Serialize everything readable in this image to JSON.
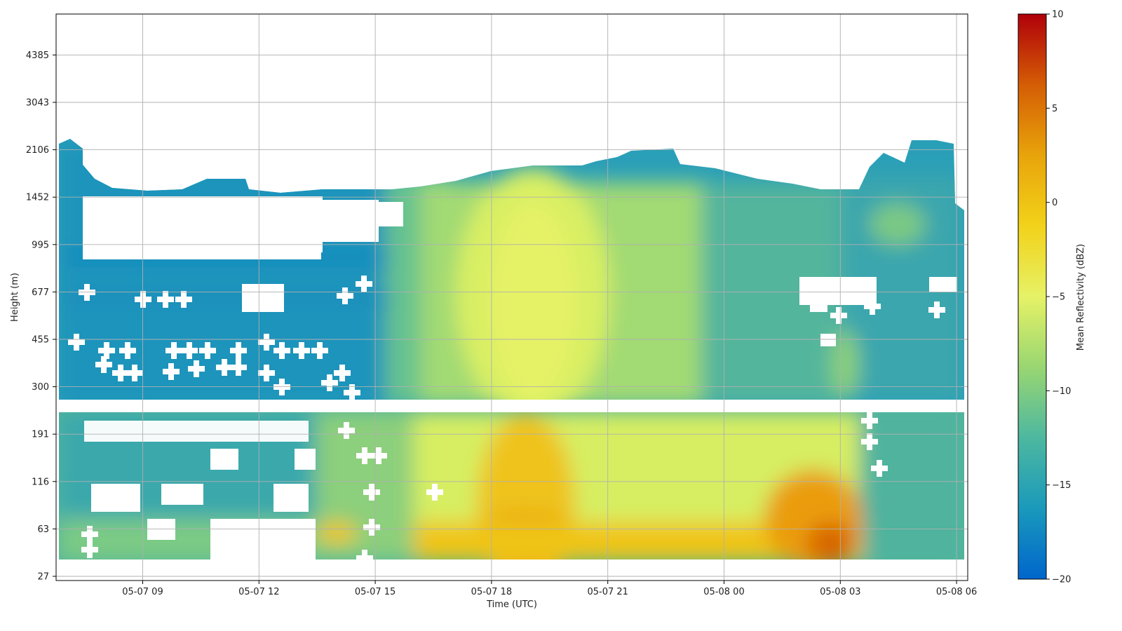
{
  "chart_data": {
    "type": "heatmap",
    "title": "",
    "xlabel": "Time (UTC)",
    "ylabel": "Height (m)",
    "x_ticks": [
      "05-07 09",
      "05-07 12",
      "05-07 15",
      "05-07 18",
      "05-07 21",
      "05-08 00",
      "05-08 03",
      "05-08 06"
    ],
    "x_range": [
      "05-07 06:45",
      "05-08 06:15"
    ],
    "y_ticks": [
      27,
      63,
      116,
      191,
      300,
      455,
      677,
      995,
      1452,
      2106,
      3043,
      4385
    ],
    "y_scale": "nonlinear (roughly logarithmic)",
    "y_range": [
      20,
      6000
    ],
    "grid": true,
    "colorbar": {
      "label": "Mean Reflectivity (dBZ)",
      "ticks": [
        -20,
        -15,
        -10,
        -5,
        0,
        5,
        10
      ],
      "range": [
        -20,
        10
      ],
      "colormap": [
        "#0066cc",
        "#1a99bb",
        "#4db8a0",
        "#99d672",
        "#e6f266",
        "#f2d21a",
        "#e8a40a",
        "#d45d05",
        "#b0000a"
      ]
    },
    "approx_features": [
      {
        "region": "morning 05-07 07-15 UTC, 300-1600 m",
        "reflectivity_dbz": -17
      },
      {
        "region": "05-07 18-21 UTC, 300-1500 m column",
        "reflectivity_dbz": -9
      },
      {
        "region": "05-07 18-20 UTC, 40-200 m",
        "reflectivity_dbz": -2
      },
      {
        "region": "05-08 02-03 UTC, 40-120 m",
        "reflectivity_dbz": 0
      },
      {
        "region": "afternoon near-surface 15-05-08 03 UTC",
        "reflectivity_dbz": -6
      }
    ]
  }
}
